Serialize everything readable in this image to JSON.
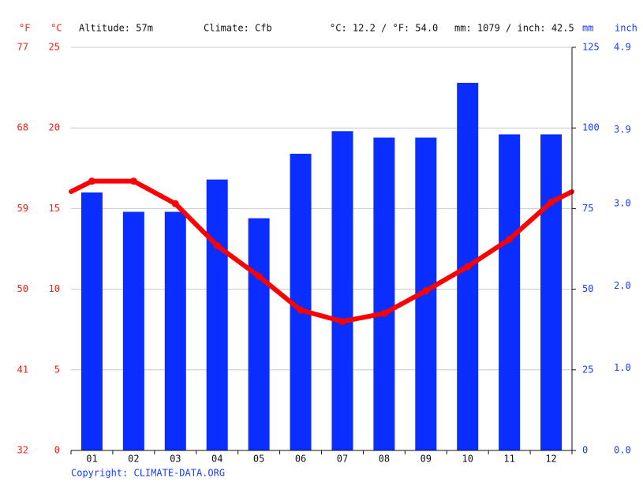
{
  "chart_data": {
    "type": "climate",
    "header": {
      "f_unit": "°F",
      "c_unit": "°C",
      "altitude": "Altitude: 57m",
      "climate": "Climate: Cfb",
      "temp_avg": "°C: 12.2 / °F: 54.0",
      "prec_total": "mm: 1079 / inch: 42.5",
      "mm_unit": "mm",
      "inch_unit": "inch"
    },
    "categories": [
      "01",
      "02",
      "03",
      "04",
      "05",
      "06",
      "07",
      "08",
      "09",
      "10",
      "11",
      "12"
    ],
    "precipitation": {
      "values": [
        80,
        74,
        74,
        84,
        72,
        92,
        99,
        97,
        97,
        114,
        98,
        98
      ],
      "color": "#0a2eff",
      "axis": "y2"
    },
    "temperature": {
      "values": [
        16.7,
        16.7,
        15.3,
        12.7,
        10.8,
        8.7,
        8.0,
        8.5,
        9.9,
        11.4,
        13.1,
        15.4
      ],
      "color": "#ff0000"
    },
    "ylim": [
      0,
      25
    ],
    "yticks": [
      0,
      5,
      10,
      15,
      20,
      25
    ],
    "yflim": [
      32,
      77
    ],
    "yfticks": [
      32,
      41,
      50,
      59,
      68,
      77
    ],
    "y2lim": [
      0,
      125
    ],
    "y2ticks": [
      0,
      25,
      50,
      75,
      100,
      125
    ],
    "y3lim": [
      0,
      4.9
    ],
    "y3ticks": [
      {
        "value": 0,
        "label": "0.0"
      },
      {
        "value": 1,
        "label": "1.0"
      },
      {
        "value": 2,
        "label": "2.0"
      },
      {
        "value": 3,
        "label": "3.0"
      },
      3.9,
      4.9
    ],
    "grid": true,
    "copyright": "Copyright: CLIMATE-DATA.ORG"
  }
}
